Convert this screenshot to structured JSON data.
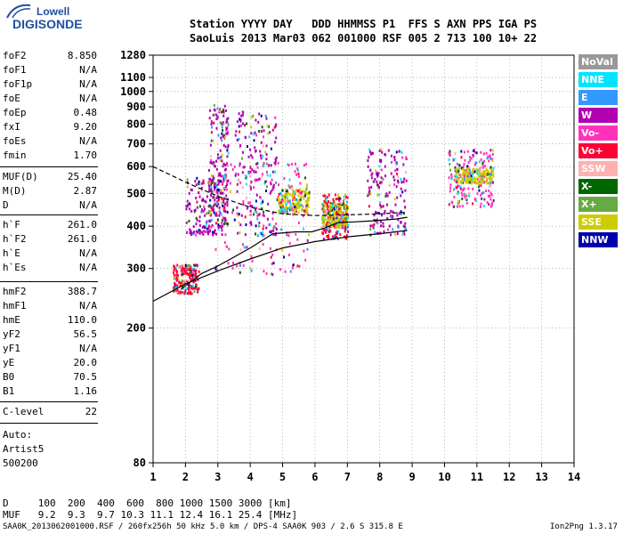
{
  "logo": {
    "word": "Lowell",
    "brand": "DIGISONDE"
  },
  "header": {
    "line1": "Station YYYY DAY   DDD HHMMSS P1  FFS S AXN PPS IGA PS",
    "line2": "SaoLuis 2013 Mar03 062 001000 RSF 005 2 713 100 10+ 22"
  },
  "params": [
    {
      "name": "foF2",
      "value": "8.850"
    },
    {
      "name": "foF1",
      "value": "N/A"
    },
    {
      "name": "foF1p",
      "value": "N/A"
    },
    {
      "name": "foE",
      "value": "N/A"
    },
    {
      "name": "foEp",
      "value": "0.48"
    },
    {
      "name": "fxI",
      "value": "9.20"
    },
    {
      "name": "foEs",
      "value": "N/A"
    },
    {
      "name": "fmin",
      "value": "1.70"
    },
    {
      "name": "MUF(D)",
      "value": "25.40"
    },
    {
      "name": "M(D)",
      "value": "2.87"
    },
    {
      "name": "D",
      "value": "N/A"
    },
    {
      "name": "h`F",
      "value": "261.0"
    },
    {
      "name": "h`F2",
      "value": "261.0"
    },
    {
      "name": "h`E",
      "value": "N/A"
    },
    {
      "name": "h`Es",
      "value": "N/A"
    },
    {
      "name": "hmF2",
      "value": "388.7"
    },
    {
      "name": "hmF1",
      "value": "N/A"
    },
    {
      "name": "hmE",
      "value": "110.0"
    },
    {
      "name": "yF2",
      "value": "56.5"
    },
    {
      "name": "yF1",
      "value": "N/A"
    },
    {
      "name": "yE",
      "value": "20.0"
    },
    {
      "name": "B0",
      "value": "70.5"
    },
    {
      "name": "B1",
      "value": "1.16"
    },
    {
      "name": "C-level",
      "value": "22"
    }
  ],
  "auto": {
    "l1": "Auto:",
    "l2": "Artist5",
    "l3": "500200"
  },
  "legend": [
    {
      "label": "NoVal",
      "bg": "#999999",
      "fg": "#ffffff"
    },
    {
      "label": "NNE",
      "bg": "#00e5ff",
      "fg": "#ffffff"
    },
    {
      "label": "E",
      "bg": "#3399ff",
      "fg": "#ffffff"
    },
    {
      "label": "W",
      "bg": "#b000b0",
      "fg": "#ffffff"
    },
    {
      "label": "Vo-",
      "bg": "#ff33bb",
      "fg": "#ffffff"
    },
    {
      "label": "Vo+",
      "bg": "#ff0033",
      "fg": "#ffffff"
    },
    {
      "label": "SSW",
      "bg": "#ffb0b0",
      "fg": "#ffffff"
    },
    {
      "label": "X-",
      "bg": "#006600",
      "fg": "#ffffff"
    },
    {
      "label": "X+",
      "bg": "#66aa44",
      "fg": "#ffffff"
    },
    {
      "label": "SSE",
      "bg": "#cccc00",
      "fg": "#ffffff"
    },
    {
      "label": "NNW",
      "bg": "#0000aa",
      "fg": "#ffffff"
    }
  ],
  "footer": {
    "d_row": "D     100  200  400  600  800 1000 1500 3000 [km]",
    "muf_row": "MUF   9.2  9.3  9.7 10.3 11.1 12.4 16.1 25.4 [MHz]",
    "file_line": "SAA0K_2013062001000.RSF / 260fx256h 50 kHz 5.0 km / DPS-4 SAA0K 903 / 2.6 S 315.8 E",
    "version": "Ion2Png 1.3.17"
  },
  "chart_data": {
    "type": "scatter",
    "title": "",
    "xlabel": "",
    "ylabel": "",
    "xlim": [
      1,
      14
    ],
    "ylim": [
      80,
      1280
    ],
    "y_scale": "log",
    "xticks": [
      1,
      2,
      3,
      4,
      5,
      6,
      7,
      8,
      9,
      10,
      11,
      12,
      13,
      14
    ],
    "yticks": [
      80,
      200,
      300,
      400,
      500,
      600,
      700,
      800,
      900,
      1000,
      1100,
      1280
    ],
    "grid": true,
    "legend_position": "right",
    "clusters": [
      {
        "x_range": [
          1.6,
          2.4
        ],
        "y_range": [
          255,
          310
        ],
        "color": "#ff0033"
      },
      {
        "x_range": [
          2.0,
          3.3
        ],
        "y_range": [
          380,
          560
        ],
        "color": "#b000b0"
      },
      {
        "x_range": [
          2.7,
          3.3
        ],
        "y_range": [
          400,
          920
        ],
        "color": "#b000b0"
      },
      {
        "x_range": [
          2.9,
          5.8
        ],
        "y_range": [
          290,
          620
        ],
        "color": "#ff33bb"
      },
      {
        "x_range": [
          3.5,
          4.8
        ],
        "y_range": [
          380,
          880
        ],
        "color": "#b000b0"
      },
      {
        "x_range": [
          4.8,
          5.8
        ],
        "y_range": [
          440,
          520
        ],
        "color": "#cccc00"
      },
      {
        "x_range": [
          6.2,
          7.0
        ],
        "y_range": [
          370,
          500
        ],
        "color": "#ff0033"
      },
      {
        "x_range": [
          6.2,
          7.0
        ],
        "y_range": [
          400,
          470
        ],
        "color": "#cccc00"
      },
      {
        "x_range": [
          7.6,
          8.8
        ],
        "y_range": [
          380,
          680
        ],
        "color": "#b000b0"
      },
      {
        "x_range": [
          10.1,
          11.5
        ],
        "y_range": [
          460,
          680
        ],
        "color": "#ff33bb"
      },
      {
        "x_range": [
          10.3,
          11.5
        ],
        "y_range": [
          540,
          600
        ],
        "color": "#cccc00"
      }
    ],
    "traces": [
      {
        "name": "profile",
        "points": [
          [
            1.0,
            240
          ],
          [
            2.0,
            270
          ],
          [
            3.0,
            295
          ],
          [
            4.0,
            320
          ],
          [
            5.0,
            345
          ],
          [
            6.0,
            360
          ],
          [
            7.0,
            372
          ],
          [
            8.0,
            380
          ],
          [
            8.85,
            388.7
          ]
        ]
      },
      {
        "name": "virtual",
        "points": [
          [
            1.85,
            260
          ],
          [
            2.5,
            290
          ],
          [
            3.0,
            305
          ],
          [
            4.0,
            345
          ],
          [
            4.7,
            380
          ],
          [
            5.4,
            385
          ],
          [
            5.9,
            385
          ],
          [
            6.3,
            395
          ],
          [
            6.7,
            410
          ],
          [
            7.2,
            412
          ],
          [
            7.8,
            415
          ],
          [
            8.5,
            420
          ],
          [
            8.85,
            425
          ]
        ]
      },
      {
        "name": "dashed",
        "points": [
          [
            1.0,
            600
          ],
          [
            2.0,
            540
          ],
          [
            3.0,
            490
          ],
          [
            4.0,
            455
          ],
          [
            5.0,
            435
          ],
          [
            6.0,
            430
          ],
          [
            7.0,
            432
          ],
          [
            8.0,
            435
          ],
          [
            8.85,
            440
          ]
        ]
      }
    ]
  }
}
